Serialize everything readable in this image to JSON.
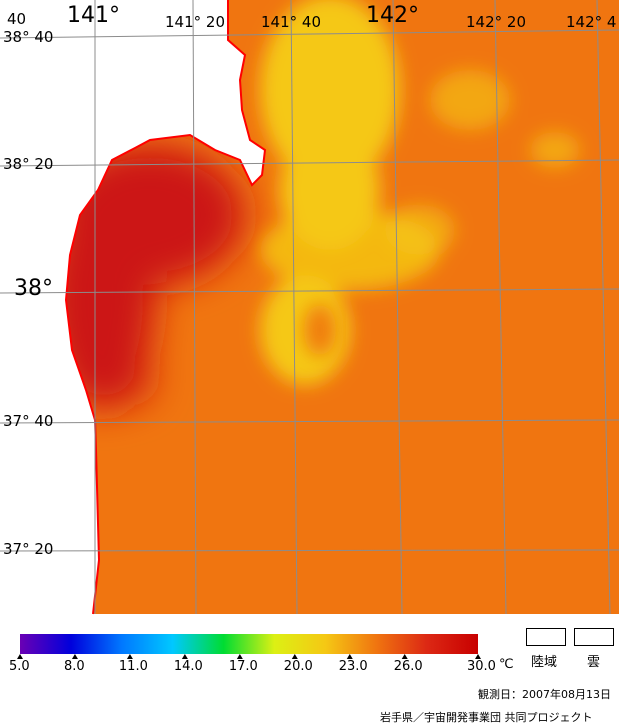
{
  "map": {
    "lon_labels": [
      {
        "text": "141°",
        "size": "big"
      },
      {
        "text": "141° 20",
        "size": "small"
      },
      {
        "text": "141° 40",
        "size": "small"
      },
      {
        "text": "142°",
        "size": "big"
      },
      {
        "text": "142° 20",
        "size": "small"
      },
      {
        "text": "142° 4",
        "size": "small"
      }
    ],
    "lat_labels": [
      {
        "text": "38° 40",
        "size": "small"
      },
      {
        "text": "38° 20",
        "size": "small"
      },
      {
        "text": "38°",
        "size": "big"
      },
      {
        "text": "37° 40",
        "size": "small"
      },
      {
        "text": "37° 20",
        "size": "small"
      }
    ],
    "corner_label": "40",
    "colors": {
      "land": "#ffffff",
      "coast": "#ff0000",
      "sea_base": "#f07510",
      "warm_core": "#cc1414",
      "cool_tongue": "#f5c814",
      "grid": "#8c8c8c"
    }
  },
  "legend": {
    "unit": "℃",
    "min": 5.0,
    "max": 30.0,
    "ticks": [
      "5.0",
      "8.0",
      "11.0",
      "14.0",
      "17.0",
      "20.0",
      "23.0",
      "26.0",
      "30.0"
    ],
    "gradient_colors": [
      "#6a00b4",
      "#0000dc",
      "#0078ff",
      "#00c8ff",
      "#00dc32",
      "#dcf014",
      "#f5c814",
      "#f07510",
      "#dc2814",
      "#c80000"
    ],
    "land_label": "陸域",
    "cloud_label": "雲"
  },
  "footer": {
    "observation_date": "観測日：2007年08月13日",
    "credit": "岩手県／宇宙開発事業団 共同プロジェクト"
  }
}
